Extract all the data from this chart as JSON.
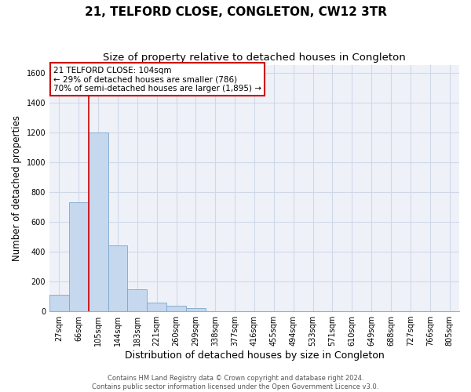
{
  "title": "21, TELFORD CLOSE, CONGLETON, CW12 3TR",
  "subtitle": "Size of property relative to detached houses in Congleton",
  "xlabel": "Distribution of detached houses by size in Congleton",
  "ylabel": "Number of detached properties",
  "bar_labels": [
    "27sqm",
    "66sqm",
    "105sqm",
    "144sqm",
    "183sqm",
    "221sqm",
    "260sqm",
    "299sqm",
    "338sqm",
    "377sqm",
    "416sqm",
    "455sqm",
    "494sqm",
    "533sqm",
    "571sqm",
    "610sqm",
    "649sqm",
    "688sqm",
    "727sqm",
    "766sqm",
    "805sqm"
  ],
  "bar_heights": [
    110,
    730,
    1200,
    440,
    145,
    60,
    35,
    20,
    0,
    0,
    0,
    0,
    0,
    0,
    0,
    0,
    0,
    0,
    0,
    0,
    0
  ],
  "bar_color": "#c5d8ee",
  "bar_edge_color": "#7ba7cc",
  "grid_color": "#d0d8e8",
  "background_color": "#eef2f8",
  "vline_x_index": 2,
  "vline_color": "#cc0000",
  "annotation_box_text": "21 TELFORD CLOSE: 104sqm\n← 29% of detached houses are smaller (786)\n70% of semi-detached houses are larger (1,895) →",
  "ylim": [
    0,
    1650
  ],
  "yticks": [
    0,
    200,
    400,
    600,
    800,
    1000,
    1200,
    1400,
    1600
  ],
  "footer_line1": "Contains HM Land Registry data © Crown copyright and database right 2024.",
  "footer_line2": "Contains public sector information licensed under the Open Government Licence v3.0.",
  "title_fontsize": 11,
  "subtitle_fontsize": 9.5,
  "tick_fontsize": 7,
  "ylabel_fontsize": 8.5,
  "xlabel_fontsize": 9
}
